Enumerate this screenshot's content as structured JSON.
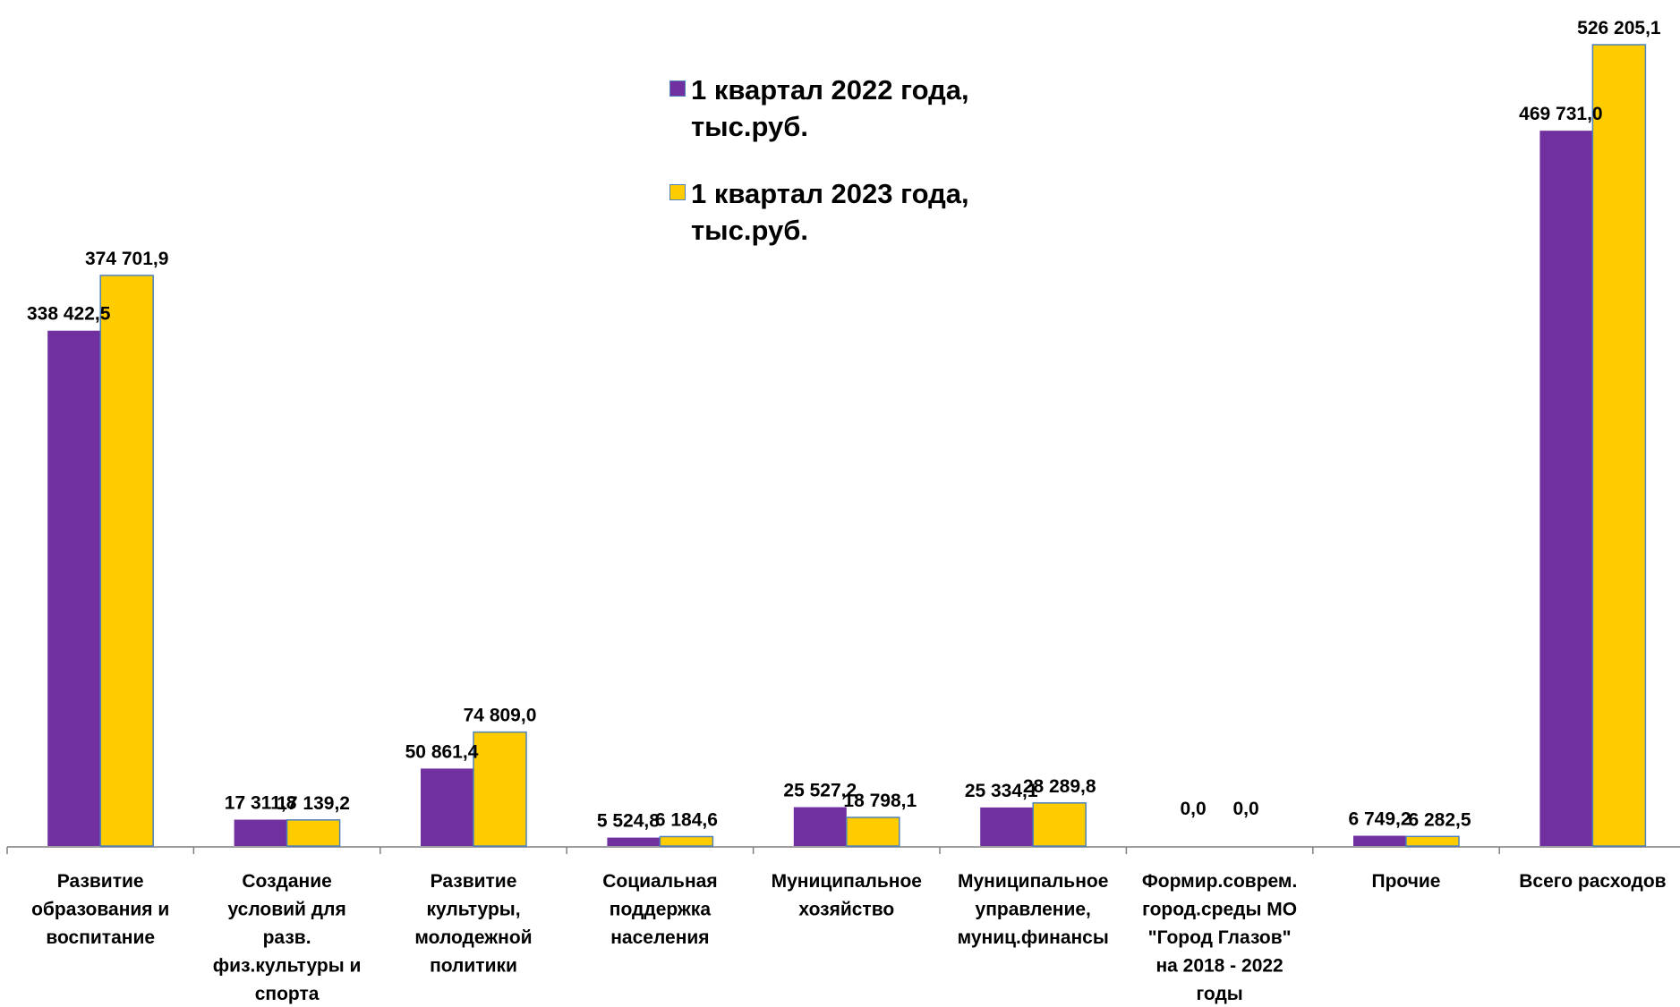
{
  "chart_data": {
    "type": "bar",
    "categories": [
      "Развитие образования и воспитание",
      "Создание условий для разв. физ.культуры и спорта",
      "Развитие культуры, молодежной политики",
      "Социальная поддержка населения",
      "Муниципальное хозяйство",
      "Муниципальное управление, муниц.финансы",
      "Формир.соврем. город.среды МО \"Город Глазов\" на 2018 - 2022 годы",
      "Прочие",
      "Всего расходов"
    ],
    "category_lines": [
      [
        "Развитие",
        "образования и",
        "воспитание"
      ],
      [
        "Создание",
        "условий для",
        "разв.",
        "физ.культуры и",
        "спорта"
      ],
      [
        "Развитие",
        "культуры,",
        "молодежной",
        "политики"
      ],
      [
        "Социальная",
        "поддержка",
        "населения"
      ],
      [
        "Муниципальное",
        "хозяйство"
      ],
      [
        "Муниципальное",
        "управление,",
        "муниц.финансы"
      ],
      [
        "Формир.соврем.",
        "город.среды МО",
        "\"Город Глазов\"",
        "на 2018 - 2022",
        "годы"
      ],
      [
        "Прочие"
      ],
      [
        "Всего расходов"
      ]
    ],
    "series": [
      {
        "name": "1 квартал 2022 года, тыс.руб.",
        "color": "#7030A0",
        "values": [
          338422.5,
          17311.8,
          50861.4,
          5524.8,
          25527.2,
          25334.1,
          0.0,
          6749.2,
          469731.0
        ],
        "labels": [
          "338 422,5",
          "17 311,8",
          "50 861,4",
          "5 524,8",
          "25 527,2",
          "25 334,1",
          "0,0",
          "6 749,2",
          "469 731,0"
        ]
      },
      {
        "name": "1 квартал 2023 года, тыс.руб.",
        "color": "#FFCC00",
        "values": [
          374701.9,
          17139.2,
          74809.0,
          6184.6,
          18798.1,
          28289.8,
          0.0,
          6282.5,
          526205.1
        ],
        "labels": [
          "374 701,9",
          "17 139,2",
          "74 809,0",
          "6 184,6",
          "18 798,1",
          "28 289,8",
          "0,0",
          "6 282,5",
          "526 205,1"
        ]
      }
    ],
    "legend": {
      "position": "top-center",
      "items": [
        {
          "text": "1 квартал 2022 года,\nтыс.руб."
        },
        {
          "text": " 1 квартал 2023 года,\nтыс.руб."
        }
      ]
    },
    "ylim": [
      0,
      526205.1
    ],
    "grid": false,
    "bar_outline_color": "#4F81BD"
  }
}
